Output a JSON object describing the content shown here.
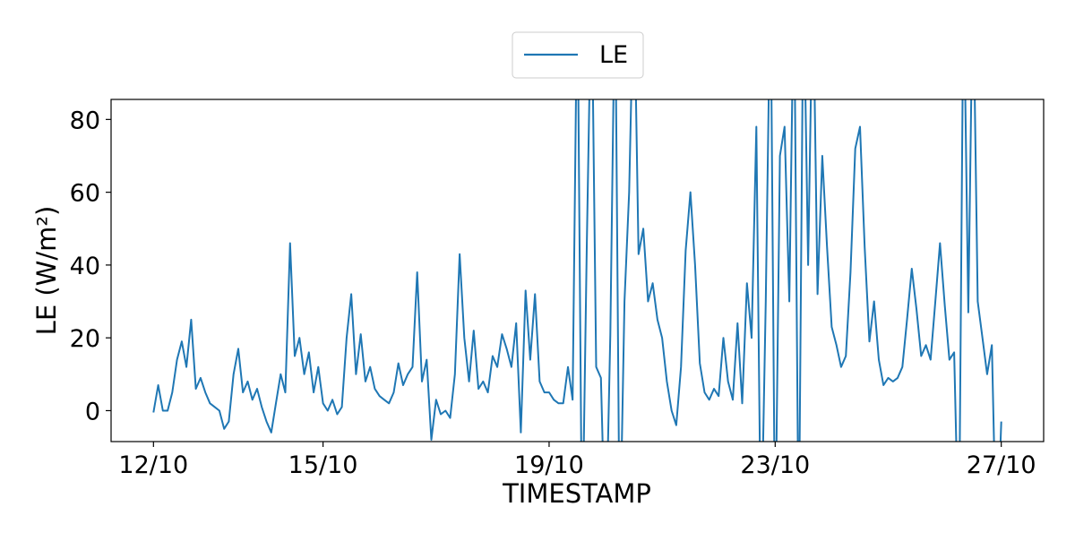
{
  "chart_data": {
    "type": "line",
    "title": "",
    "xlabel": "TIMESTAMP",
    "ylabel": "LE (W/m²)",
    "xlim": [
      "11/10 06:00",
      "27/10 18:00"
    ],
    "ylim": [
      -8.5,
      85.5
    ],
    "xticks": [
      "12/10",
      "15/10",
      "19/10",
      "23/10",
      "27/10"
    ],
    "yticks": [
      0,
      20,
      40,
      60,
      80
    ],
    "grid": false,
    "legend": {
      "position": "top-center, outside",
      "entries": [
        "LE"
      ]
    },
    "series": [
      {
        "name": "LE",
        "color": "#1f77b4",
        "sampling_interval_hours": 2,
        "values_by_day": {
          "12/10": [
            -0.5,
            7,
            0,
            0,
            5,
            14,
            19,
            12,
            25,
            6,
            9,
            5
          ],
          "13/10": [
            2,
            1,
            0,
            -5,
            -3,
            10,
            17,
            5,
            8,
            3,
            6,
            1
          ],
          "14/10": [
            -3,
            -6,
            2,
            10,
            5,
            46,
            15,
            20,
            10,
            16,
            5,
            12
          ],
          "15/10": [
            2,
            0,
            3,
            -1,
            1,
            20,
            32,
            10,
            21,
            8,
            12,
            6
          ],
          "16/10": [
            4,
            3,
            2,
            5,
            13,
            7,
            10,
            12,
            38,
            8,
            14,
            -8
          ],
          "17/10": [
            3,
            -1,
            0,
            -2,
            10,
            43,
            20,
            8,
            22,
            6,
            8,
            5
          ],
          "18/10": [
            15,
            12,
            21,
            17,
            12,
            24,
            -6,
            33,
            14,
            32,
            8,
            5
          ],
          "19/10": [
            5,
            3,
            2,
            2,
            12,
            3,
            120,
            -40,
            45,
            120,
            12,
            9
          ],
          "20/10": [
            -40,
            21,
            120,
            -40,
            30,
            60,
            120,
            43,
            50,
            30,
            35,
            25
          ],
          "21/10": [
            20,
            8,
            0,
            -4,
            12,
            44,
            60,
            40,
            13,
            5,
            3,
            6
          ],
          "22/10": [
            4,
            20,
            8,
            3,
            24,
            2,
            35,
            20,
            78,
            -40,
            30,
            120
          ],
          "23/10": [
            -40,
            70,
            78,
            30,
            120,
            -40,
            120,
            40,
            120,
            32,
            70,
            45
          ],
          "24/10": [
            23,
            18,
            12,
            15,
            38,
            72,
            78,
            45,
            19,
            30,
            14,
            7
          ],
          "25/10": [
            9,
            8,
            9,
            12,
            25,
            39,
            28,
            15,
            18,
            14,
            30,
            46
          ],
          "26/10": [
            29,
            14,
            16,
            -40,
            120,
            27,
            120,
            30,
            20,
            10,
            18,
            -40
          ],
          "27/10": [
            -3
          ]
        }
      }
    ]
  }
}
